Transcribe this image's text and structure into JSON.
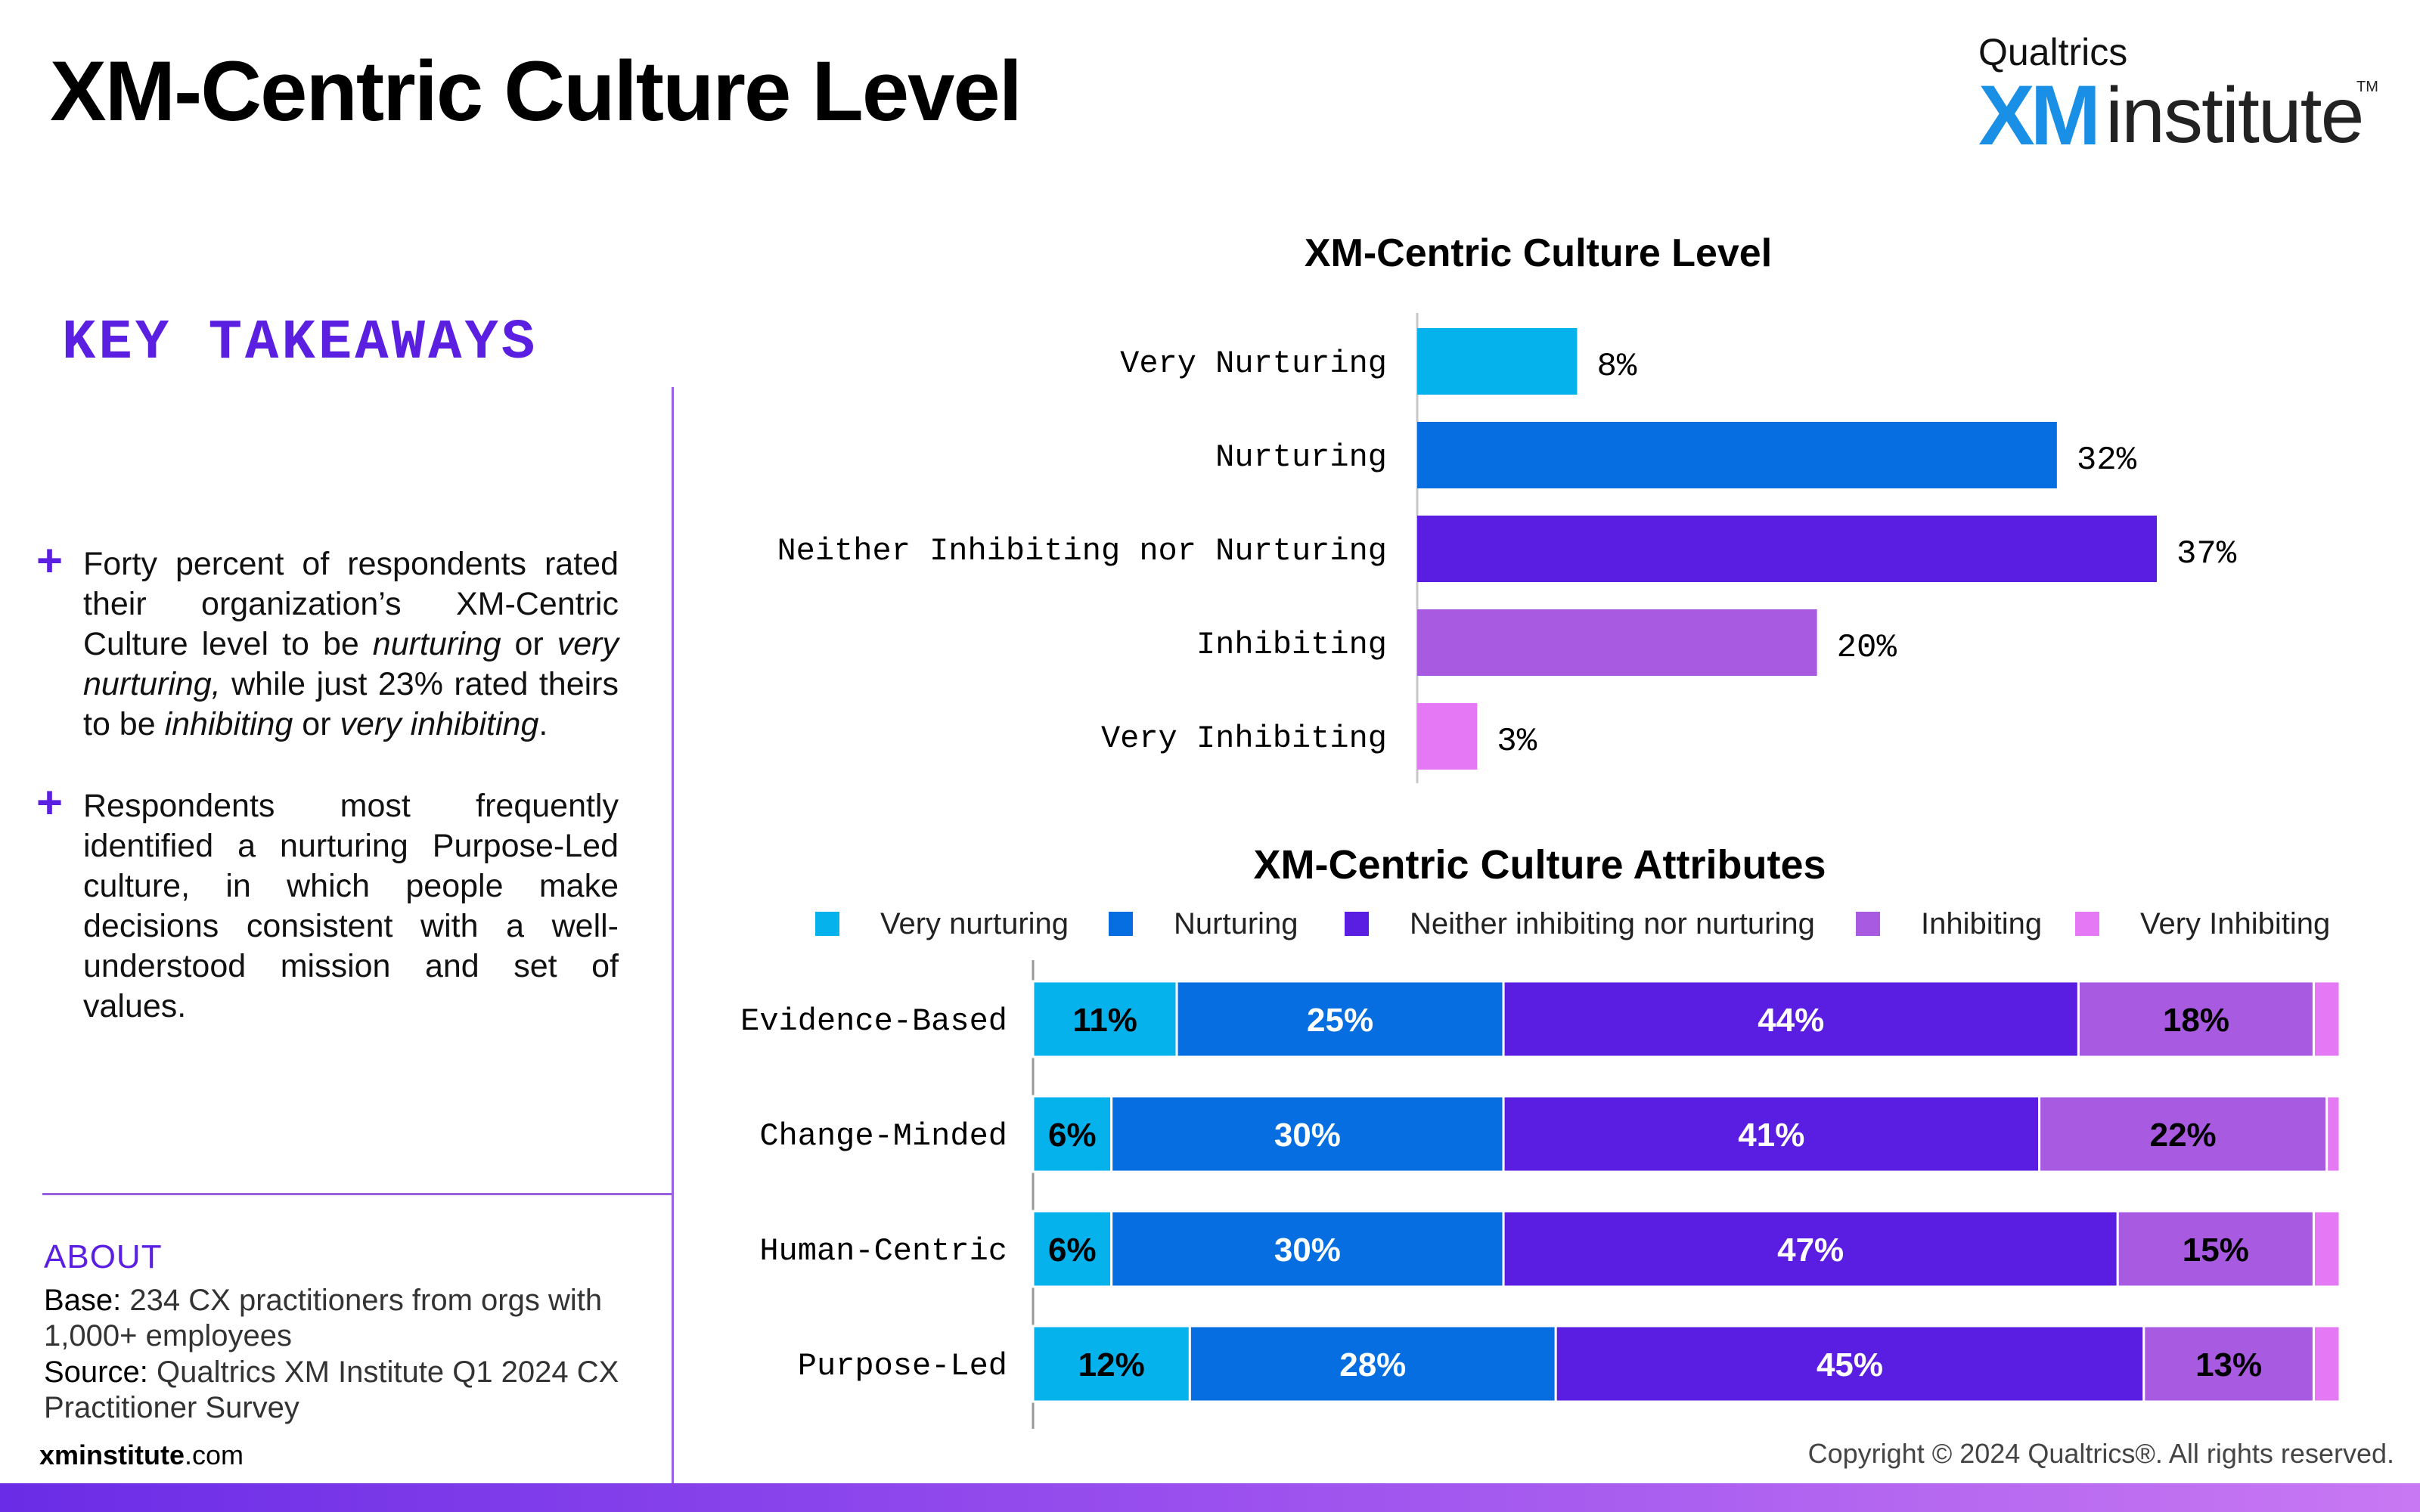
{
  "header": {
    "title": "XM-Centric Culture Level",
    "logo_top": "Qualtrics",
    "logo_xm": "XM",
    "logo_institute": "institute",
    "logo_tm": "TM"
  },
  "takeaways": {
    "heading": "KEY TAKEAWAYS",
    "plus_glyph": "+",
    "item1": {
      "t1": "Forty percent of respondents rated their organization’s XM-Centric Culture level to be ",
      "e1": "nurturing",
      "t2": " or ",
      "e2": "very nurturing,",
      "t3": " while just 23% rated theirs to be ",
      "e3": "inhibiting",
      "t4": " or ",
      "e4": "very inhibiting",
      "t5": "."
    },
    "item2": "Respondents most frequently identified a nurturing Purpose-Led culture, in which people make decisions consistent with a well-understood mission and set of values."
  },
  "about": {
    "heading": "ABOUT",
    "base_label": "Base:",
    "base_text": " 234 CX practitioners from orgs with 1,000+ employees",
    "source_label": "Source:",
    "source_text": " Qualtrics XM Institute Q1 2024 CX Practitioner Survey"
  },
  "footer": {
    "site_bold": "xminstitute",
    "site_rest": ".com",
    "copyright": "Copyright © 2024 Qualtrics®. All rights reserved."
  },
  "chart_data": [
    {
      "type": "bar",
      "orientation": "horizontal",
      "title": "XM-Centric Culture Level",
      "categories": [
        "Very Nurturing",
        "Nurturing",
        "Neither Inhibiting nor Nurturing",
        "Inhibiting",
        "Very Inhibiting"
      ],
      "values": [
        8,
        32,
        37,
        20,
        3
      ],
      "value_labels": [
        "8%",
        "32%",
        "37%",
        "20%",
        "3%"
      ],
      "colors": [
        "#05b2ec",
        "#066ee0",
        "#5a1de2",
        "#a85ae0",
        "#e478f5"
      ],
      "xlim": [
        0,
        40
      ]
    },
    {
      "type": "bar",
      "orientation": "horizontal",
      "stacked": true,
      "title": "XM-Centric Culture Attributes",
      "legend_position": "top",
      "categories": [
        "Evidence-Based",
        "Change-Minded",
        "Human-Centric",
        "Purpose-Led"
      ],
      "series": [
        {
          "name": "Very nurturing",
          "color": "#05b2ec",
          "values": [
            11,
            6,
            6,
            12
          ],
          "labels": [
            "11%",
            "6%",
            "6%",
            "12%"
          ],
          "label_color": "#000000"
        },
        {
          "name": "Nurturing",
          "color": "#066ee0",
          "values": [
            25,
            30,
            30,
            28
          ],
          "labels": [
            "25%",
            "30%",
            "30%",
            "28%"
          ],
          "label_color": "#ffffff"
        },
        {
          "name": "Neither inhibiting nor nurturing",
          "color": "#5a1de2",
          "values": [
            44,
            41,
            47,
            45
          ],
          "labels": [
            "44%",
            "41%",
            "47%",
            "45%"
          ],
          "label_color": "#ffffff"
        },
        {
          "name": "Inhibiting",
          "color": "#a85ae0",
          "values": [
            18,
            22,
            15,
            13
          ],
          "labels": [
            "18%",
            "22%",
            "15%",
            "13%"
          ],
          "label_color": "#000000"
        },
        {
          "name": "Very Inhibiting",
          "color": "#e478f5",
          "values": [
            2,
            1,
            2,
            2
          ],
          "labels": [
            "",
            "",
            "",
            ""
          ],
          "label_color": "#000000"
        }
      ],
      "xlim": [
        0,
        100
      ]
    }
  ]
}
